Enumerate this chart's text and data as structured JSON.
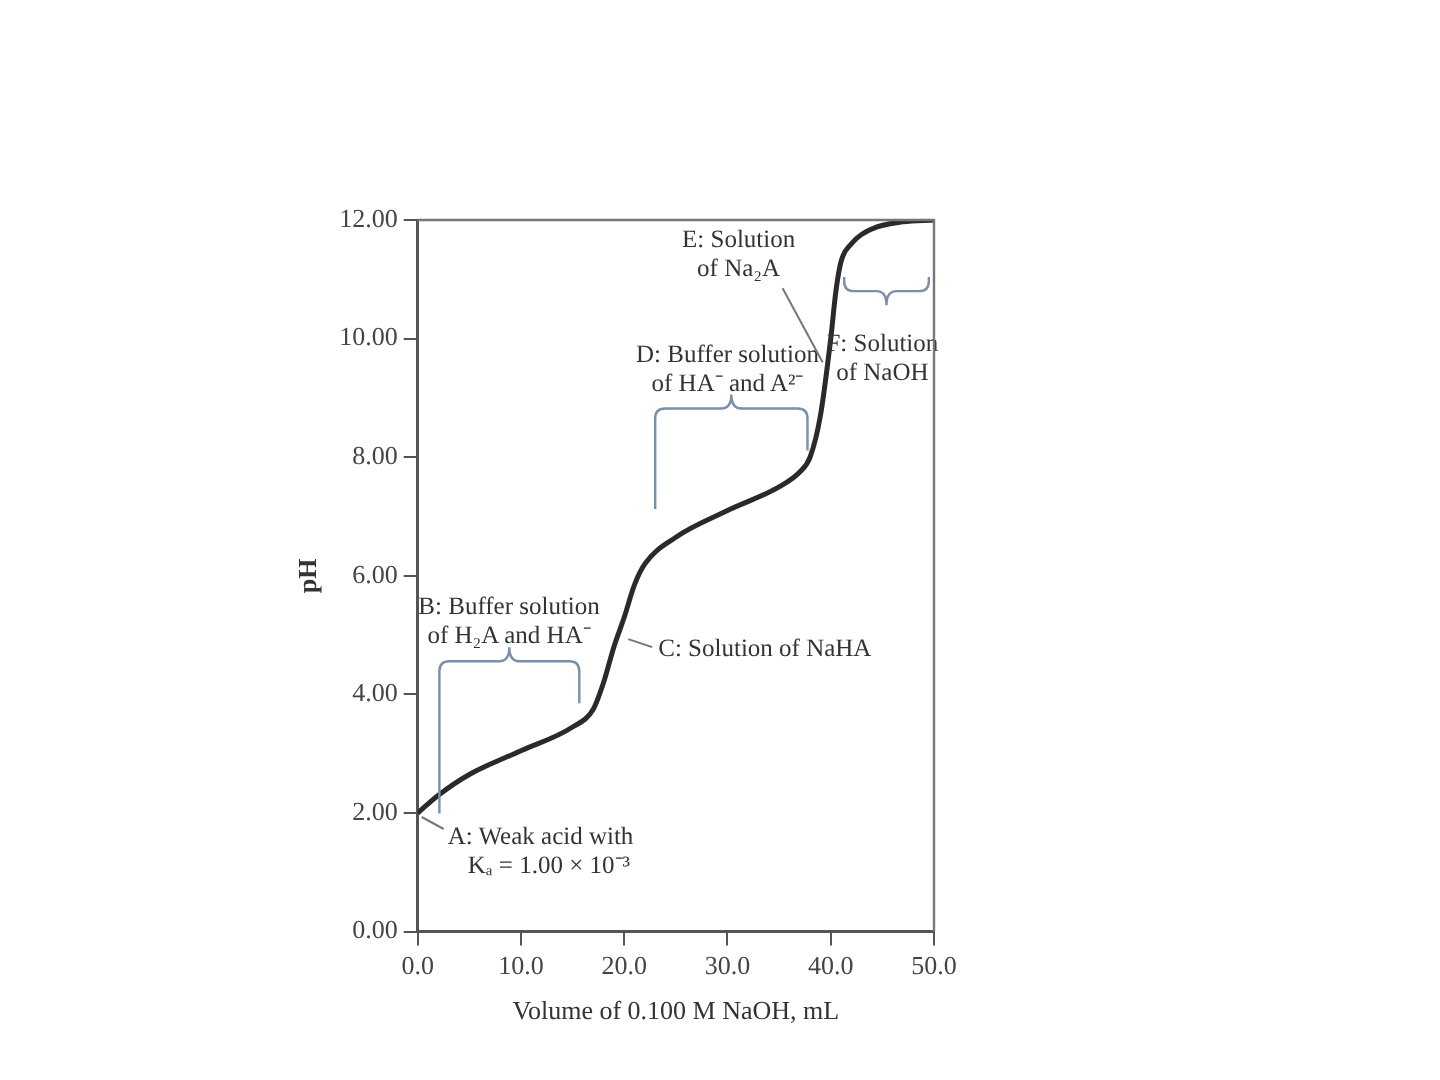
{
  "chart_data": {
    "type": "line",
    "xlabel": "Volume of 0.100 M NaOH, mL",
    "ylabel": "pH",
    "x": [
      0,
      2,
      5,
      10,
      15,
      17,
      18,
      19,
      20,
      21,
      22,
      25,
      30,
      35,
      37,
      38,
      39,
      40,
      40.5,
      41,
      42,
      44,
      47,
      50
    ],
    "series": [
      {
        "color": "#2a2a2a",
        "values": [
          2.0,
          2.3,
          2.65,
          3.05,
          3.45,
          3.75,
          4.2,
          4.8,
          5.3,
          5.85,
          6.2,
          6.65,
          7.1,
          7.5,
          7.75,
          8.0,
          8.7,
          10.0,
          10.8,
          11.3,
          11.6,
          11.85,
          11.97,
          12.0
        ]
      }
    ],
    "xlim": [
      0,
      50
    ],
    "xticks": [
      {
        "value": 0,
        "label": "0.0"
      },
      {
        "value": 10,
        "label": "10.0"
      },
      {
        "value": 20,
        "label": "20.0"
      },
      {
        "value": 30,
        "label": "30.0"
      },
      {
        "value": 40,
        "label": "40.0"
      },
      {
        "value": 50,
        "label": "50.0"
      }
    ],
    "ylim": [
      0,
      12
    ],
    "yticks": [
      {
        "value": 0,
        "label": "0.00"
      },
      {
        "value": 2,
        "label": "2.00"
      },
      {
        "value": 4,
        "label": "4.00"
      },
      {
        "value": 6,
        "label": "6.00"
      },
      {
        "value": 8,
        "label": "8.00"
      },
      {
        "value": 10,
        "label": "10.00"
      },
      {
        "value": 12,
        "label": "12.00"
      }
    ],
    "grid": false,
    "legend": false,
    "marker": "none",
    "line_style": "solid",
    "annotations": [
      {
        "text": "A: Weak acid with\nKₐ = 1.00 × 10⁻³",
        "x": 0,
        "y": 2.0
      },
      "B: Buffer solution\nof H₂A and HA⁻",
      {
        "text": "C: Solution of NaHA",
        "x": 20,
        "y": 5.0
      },
      "D: Buffer solution\nof HA⁻ and A²⁻",
      {
        "text": "E: Solution\nof Na₂A",
        "x": 39.6,
        "y": 9.5
      },
      "F: Solution\nof NaOH"
    ]
  }
}
